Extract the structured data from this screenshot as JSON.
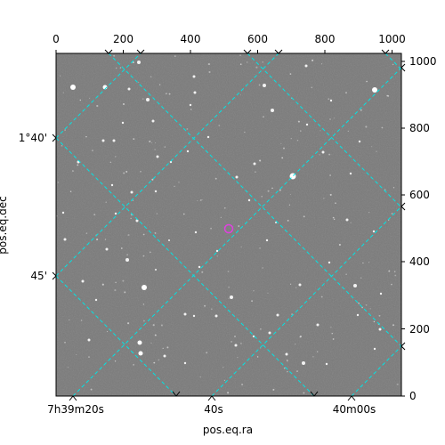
{
  "figure": {
    "xlabel": "pos.eq.ra",
    "ylabel": "pos.eq.dec",
    "pixel_axis_top_ticks": [
      "0",
      "200",
      "400",
      "600",
      "800",
      "1000"
    ],
    "pixel_axis_right_ticks": [
      "0",
      "200",
      "400",
      "600",
      "800",
      "1000"
    ],
    "ra_ticks": [
      "7h39m20s",
      "40s",
      "40m00s"
    ],
    "dec_ticks": [
      "1°40'",
      "45'"
    ],
    "grid_color": "#00e5e5",
    "marker_color": "#e040e0",
    "image_background": "#7a7a7a"
  }
}
